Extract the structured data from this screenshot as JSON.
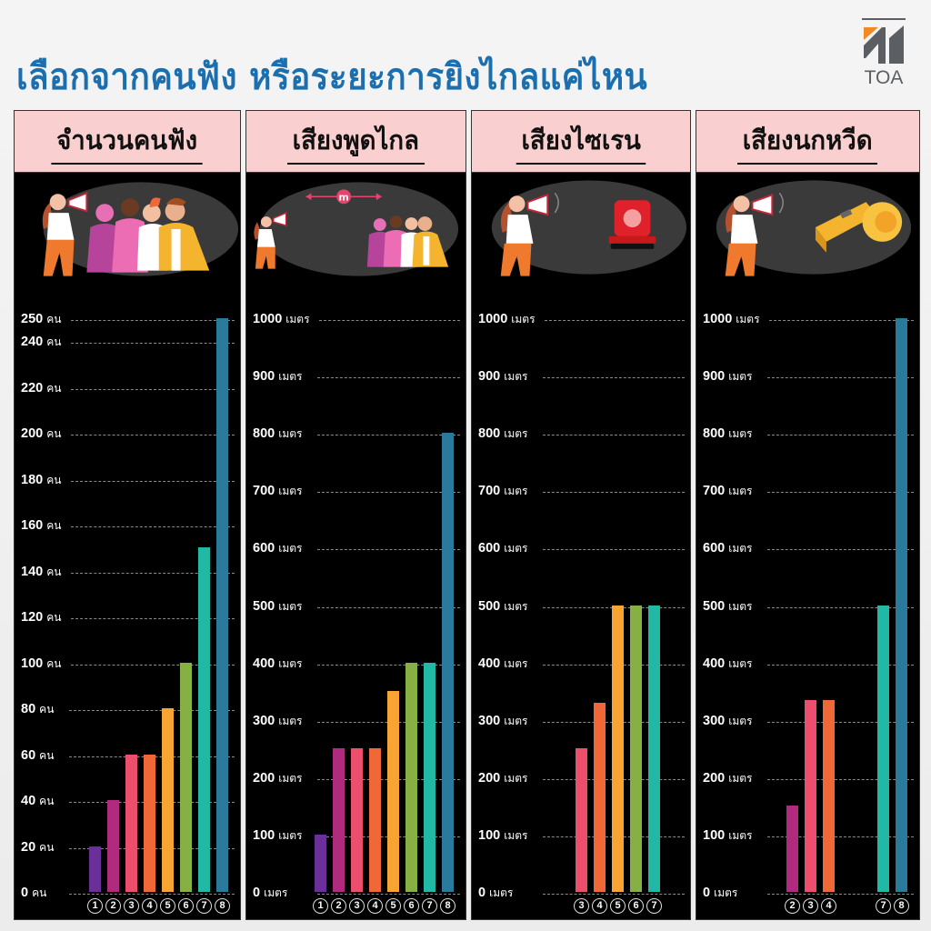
{
  "title": "เลือกจากคนฟัง หรือระยะการยิงไกลแค่ไหน",
  "logo": {
    "text": "TOA",
    "colors": {
      "orange": "#f08a24",
      "gray": "#5b5e63"
    }
  },
  "bar_colors": {
    "1": "#6b2f9a",
    "2": "#b02a7e",
    "3": "#ec4e6d",
    "4": "#f06838",
    "5": "#f7a433",
    "6": "#86b044",
    "7": "#22b8a6",
    "8": "#2a7a9c"
  },
  "panels": [
    {
      "title": "จำนวนคนฟัง",
      "illustration": "crowd-listening"
    },
    {
      "title": "เสียงพูดไกล",
      "illustration": "speech-distance",
      "distance_badge": "m"
    },
    {
      "title": "เสียงไซเรน",
      "illustration": "siren"
    },
    {
      "title": "เสียงนกหวีด",
      "illustration": "whistle"
    }
  ],
  "chart_data": [
    {
      "type": "bar",
      "title": "จำนวนคนฟัง",
      "unit": "คน",
      "ylim": [
        0,
        250
      ],
      "yticks": [
        0,
        20,
        40,
        60,
        80,
        100,
        120,
        140,
        160,
        180,
        200,
        220,
        240,
        250
      ],
      "categories": [
        "1",
        "2",
        "3",
        "4",
        "5",
        "6",
        "7",
        "8"
      ],
      "values": [
        20,
        40,
        60,
        60,
        80,
        100,
        150,
        250
      ],
      "grid": true
    },
    {
      "type": "bar",
      "title": "เสียงพูดไกล",
      "unit": "เมตร",
      "ylim": [
        0,
        1000
      ],
      "yticks": [
        0,
        100,
        200,
        300,
        400,
        500,
        600,
        700,
        800,
        900,
        1000
      ],
      "categories": [
        "1",
        "2",
        "3",
        "4",
        "5",
        "6",
        "7",
        "8"
      ],
      "values": [
        100,
        250,
        250,
        250,
        350,
        400,
        400,
        800
      ],
      "grid": true
    },
    {
      "type": "bar",
      "title": "เสียงไซเรน",
      "unit": "เมตร",
      "ylim": [
        0,
        1000
      ],
      "yticks": [
        0,
        100,
        200,
        300,
        400,
        500,
        600,
        700,
        800,
        900,
        1000
      ],
      "categories": [
        "3",
        "4",
        "5",
        "6",
        "7"
      ],
      "slots": [
        3,
        4,
        5,
        6,
        7
      ],
      "values": [
        250,
        330,
        500,
        500,
        500
      ],
      "grid": true
    },
    {
      "type": "bar",
      "title": "เสียงนกหวีด",
      "unit": "เมตร",
      "ylim": [
        0,
        1000
      ],
      "yticks": [
        0,
        100,
        200,
        300,
        400,
        500,
        600,
        700,
        800,
        900,
        1000
      ],
      "categories": [
        "2",
        "3",
        "4",
        "7",
        "8"
      ],
      "slots": [
        2,
        3,
        4,
        7,
        8
      ],
      "values": [
        150,
        335,
        335,
        500,
        1000
      ],
      "grid": true
    }
  ]
}
